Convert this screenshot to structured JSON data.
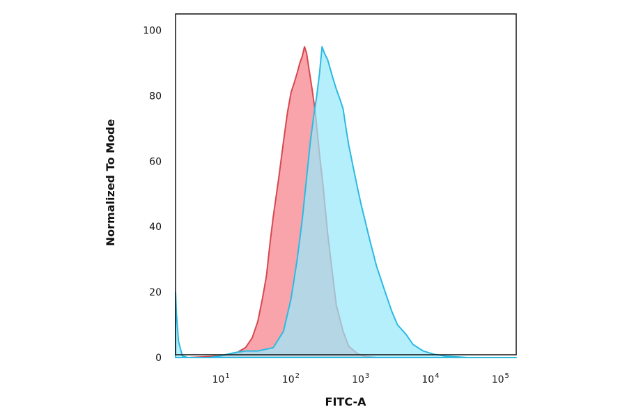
{
  "chart_data": {
    "type": "area",
    "title": "",
    "xlabel": "FITC-A",
    "ylabel": "Normalized To Mode",
    "x_scale": "log",
    "xlim": [
      2,
      150000
    ],
    "ylim": [
      0,
      105
    ],
    "grid": false,
    "legend": "none",
    "y_ticks": [
      0,
      20,
      40,
      60,
      80,
      100
    ],
    "y_tick_labels": [
      "0",
      "20",
      "40",
      "60",
      "80",
      "100"
    ],
    "x_ticks": [
      10,
      100,
      1000,
      10000,
      100000
    ],
    "x_tick_labels": [
      {
        "base": "10",
        "exp": "1"
      },
      {
        "base": "10",
        "exp": "2"
      },
      {
        "base": "10",
        "exp": "3"
      },
      {
        "base": "10",
        "exp": "4"
      },
      {
        "base": "10",
        "exp": "5"
      }
    ],
    "series": [
      {
        "fill": "#f9a4ab",
        "stroke": "#d7474f",
        "points": [
          [
            2,
            0
          ],
          [
            3,
            0
          ],
          [
            6,
            0.3
          ],
          [
            10,
            0.6
          ],
          [
            15,
            1.5
          ],
          [
            20,
            3
          ],
          [
            25,
            6
          ],
          [
            30,
            11
          ],
          [
            35,
            18
          ],
          [
            40,
            25
          ],
          [
            45,
            35
          ],
          [
            50,
            43
          ],
          [
            60,
            55
          ],
          [
            70,
            66
          ],
          [
            80,
            75
          ],
          [
            90,
            81
          ],
          [
            100,
            84
          ],
          [
            110,
            87
          ],
          [
            120,
            90
          ],
          [
            130,
            92
          ],
          [
            140,
            95
          ],
          [
            150,
            93
          ],
          [
            160,
            89
          ],
          [
            180,
            82
          ],
          [
            200,
            75
          ],
          [
            230,
            62
          ],
          [
            260,
            52
          ],
          [
            300,
            38
          ],
          [
            350,
            26
          ],
          [
            400,
            16
          ],
          [
            500,
            8
          ],
          [
            600,
            3.5
          ],
          [
            800,
            1.2
          ],
          [
            1000,
            0.4
          ],
          [
            1500,
            0
          ]
        ]
      },
      {
        "fill": "#99e9fb",
        "stroke": "#2bbae2",
        "points": [
          [
            2,
            20
          ],
          [
            2.05,
            14
          ],
          [
            2.2,
            5
          ],
          [
            2.5,
            0.5
          ],
          [
            3,
            0
          ],
          [
            6,
            0
          ],
          [
            8,
            0.3
          ],
          [
            10,
            0.8
          ],
          [
            14,
            1.5
          ],
          [
            20,
            2
          ],
          [
            30,
            2
          ],
          [
            50,
            3
          ],
          [
            70,
            8
          ],
          [
            90,
            18
          ],
          [
            110,
            30
          ],
          [
            130,
            42
          ],
          [
            150,
            55
          ],
          [
            170,
            66
          ],
          [
            190,
            74
          ],
          [
            210,
            80
          ],
          [
            230,
            87
          ],
          [
            250,
            95
          ],
          [
            270,
            93
          ],
          [
            300,
            91
          ],
          [
            350,
            86
          ],
          [
            400,
            82
          ],
          [
            450,
            79
          ],
          [
            500,
            76
          ],
          [
            550,
            70
          ],
          [
            600,
            65
          ],
          [
            700,
            58
          ],
          [
            800,
            52
          ],
          [
            900,
            47
          ],
          [
            1000,
            43
          ],
          [
            1200,
            36
          ],
          [
            1500,
            28
          ],
          [
            2000,
            20
          ],
          [
            2500,
            14
          ],
          [
            3000,
            10
          ],
          [
            4000,
            7
          ],
          [
            5000,
            4
          ],
          [
            7000,
            2
          ],
          [
            10000,
            1
          ],
          [
            15000,
            0.4
          ],
          [
            30000,
            0
          ],
          [
            150000,
            0
          ]
        ]
      }
    ]
  }
}
